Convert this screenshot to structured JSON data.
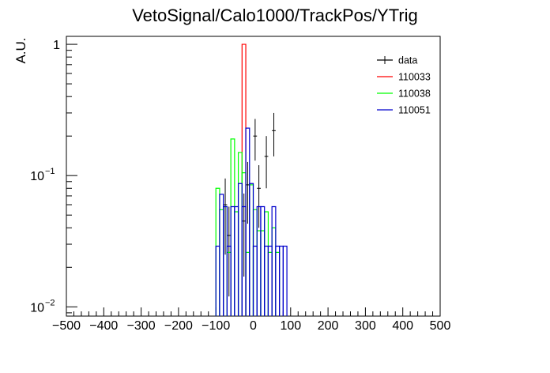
{
  "chart_data": {
    "type": "histogram",
    "title": "VetoSignal/Calo1000/TrackPos/YTrig",
    "xlabel": "",
    "ylabel": "A.U.",
    "xlim": [
      -500,
      500
    ],
    "ylim": [
      0.0085,
      1.15
    ],
    "yscale": "log",
    "x_ticks": [
      -500,
      -400,
      -300,
      -200,
      -100,
      0,
      100,
      200,
      300,
      400,
      500
    ],
    "y_ticks": [
      {
        "value": 1,
        "label": "1",
        "sup": ""
      },
      {
        "value": 0.1,
        "label": "10",
        "sup": "−1"
      },
      {
        "value": 0.01,
        "label": "10",
        "sup": "−2"
      }
    ],
    "bin_width": 10,
    "legend_placement": "top-right",
    "series": [
      {
        "name": "data",
        "color": "#000000",
        "style": "points",
        "points": [
          {
            "x": -75,
            "y": 0.06,
            "err": 0.035
          },
          {
            "x": -65,
            "y": 0.035,
            "err": 0.023
          },
          {
            "x": -25,
            "y": 0.045,
            "err": 0.028
          },
          {
            "x": -15,
            "y": 0.085,
            "err": 0.042
          },
          {
            "x": 5,
            "y": 0.2,
            "err": 0.07
          },
          {
            "x": 15,
            "y": 0.08,
            "err": 0.04
          },
          {
            "x": 35,
            "y": 0.14,
            "err": 0.06
          },
          {
            "x": 55,
            "y": 0.22,
            "err": 0.08
          }
        ]
      },
      {
        "name": "110033",
        "color": "#ff0000",
        "style": "hist",
        "bins": [
          {
            "x": -30,
            "y": 1.0
          }
        ]
      },
      {
        "name": "110038",
        "color": "#00ff00",
        "style": "hist",
        "bins": [
          {
            "x": -100,
            "y": 0.08
          },
          {
            "x": -90,
            "y": 0.055
          },
          {
            "x": -80,
            "y": 0.058
          },
          {
            "x": -70,
            "y": 0.026
          },
          {
            "x": -60,
            "y": 0.19
          },
          {
            "x": -50,
            "y": 0.053
          },
          {
            "x": -40,
            "y": 0.15
          },
          {
            "x": -30,
            "y": 0.105
          },
          {
            "x": -20,
            "y": 0.026
          },
          {
            "x": -10,
            "y": 0.085
          },
          {
            "x": 0,
            "y": 0.055
          },
          {
            "x": 10,
            "y": 0.038
          },
          {
            "x": 20,
            "y": 0.038
          },
          {
            "x": 30,
            "y": 0.053
          },
          {
            "x": 40,
            "y": 0.026
          },
          {
            "x": 50,
            "y": 0.04
          },
          {
            "x": 60,
            "y": 0.026
          }
        ]
      },
      {
        "name": "110051",
        "color": "#0000cc",
        "style": "hist",
        "bins": [
          {
            "x": -100,
            "y": 0.029
          },
          {
            "x": -90,
            "y": 0.072
          },
          {
            "x": -80,
            "y": 0.058
          },
          {
            "x": -70,
            "y": 0.029
          },
          {
            "x": -60,
            "y": 0.058
          },
          {
            "x": -50,
            "y": 0.058
          },
          {
            "x": -40,
            "y": 0.087
          },
          {
            "x": -30,
            "y": 0.058
          },
          {
            "x": -20,
            "y": 0.23
          },
          {
            "x": -10,
            "y": 0.087
          },
          {
            "x": 0,
            "y": 0.029
          },
          {
            "x": 10,
            "y": 0.058
          },
          {
            "x": 20,
            "y": 0.058
          },
          {
            "x": 30,
            "y": 0.029
          },
          {
            "x": 40,
            "y": 0.029
          },
          {
            "x": 50,
            "y": 0.058
          },
          {
            "x": 60,
            "y": 0.029
          },
          {
            "x": 70,
            "y": 0.029
          },
          {
            "x": 80,
            "y": 0.029
          }
        ]
      }
    ]
  }
}
